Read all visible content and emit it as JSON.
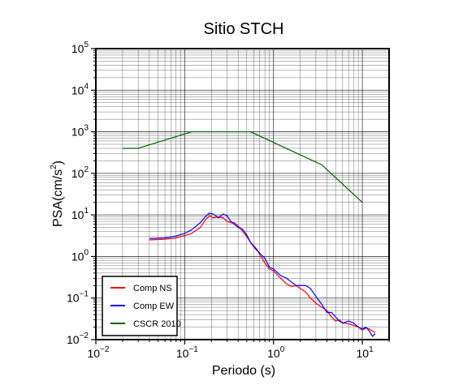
{
  "chart_data": {
    "type": "line",
    "title": "Sitio STCH",
    "xlabel": "Periodo (s)",
    "ylabel_main": "PSA(cm/s",
    "ylabel_sup": "2",
    "ylabel_close": ")",
    "x_scale": "log",
    "y_scale": "log",
    "xlim": [
      0.01,
      20
    ],
    "ylim": [
      0.01,
      100000
    ],
    "grid": true,
    "legend_position": "bottom-left",
    "x_ticks": [
      {
        "value": 0.01,
        "base": "10",
        "exp": "−2"
      },
      {
        "value": 0.1,
        "base": "10",
        "exp": "−1"
      },
      {
        "value": 1,
        "base": "10",
        "exp": "0"
      },
      {
        "value": 10,
        "base": "10",
        "exp": "1"
      }
    ],
    "y_ticks": [
      {
        "value": 0.01,
        "base": "10",
        "exp": "−2"
      },
      {
        "value": 0.1,
        "base": "10",
        "exp": "−1"
      },
      {
        "value": 1,
        "base": "10",
        "exp": "0"
      },
      {
        "value": 10,
        "base": "10",
        "exp": "1"
      },
      {
        "value": 100,
        "base": "10",
        "exp": "2"
      },
      {
        "value": 1000,
        "base": "10",
        "exp": "3"
      },
      {
        "value": 10000,
        "base": "10",
        "exp": "4"
      },
      {
        "value": 100000,
        "base": "10",
        "exp": "5"
      }
    ],
    "series": [
      {
        "name": "Comp NS",
        "color": "#ff0000",
        "points": [
          [
            0.04,
            2.5
          ],
          [
            0.06,
            2.6
          ],
          [
            0.08,
            2.8
          ],
          [
            0.1,
            3.2
          ],
          [
            0.12,
            3.6
          ],
          [
            0.15,
            5.0
          ],
          [
            0.17,
            7.5
          ],
          [
            0.19,
            9.5
          ],
          [
            0.21,
            8.5
          ],
          [
            0.24,
            9.0
          ],
          [
            0.27,
            8.5
          ],
          [
            0.3,
            7.0
          ],
          [
            0.33,
            6.5
          ],
          [
            0.36,
            6.5
          ],
          [
            0.4,
            5.5
          ],
          [
            0.45,
            4.0
          ],
          [
            0.5,
            3.0
          ],
          [
            0.55,
            2.2
          ],
          [
            0.6,
            1.8
          ],
          [
            0.65,
            1.5
          ],
          [
            0.7,
            1.1
          ],
          [
            0.8,
            0.7
          ],
          [
            0.9,
            0.5
          ],
          [
            1.0,
            0.45
          ],
          [
            1.2,
            0.3
          ],
          [
            1.4,
            0.22
          ],
          [
            1.6,
            0.19
          ],
          [
            1.8,
            0.2
          ],
          [
            2.0,
            0.17
          ],
          [
            2.3,
            0.14
          ],
          [
            2.6,
            0.1
          ],
          [
            3.0,
            0.075
          ],
          [
            3.5,
            0.06
          ],
          [
            4.0,
            0.05
          ],
          [
            4.5,
            0.035
          ],
          [
            5.0,
            0.028
          ],
          [
            5.5,
            0.03
          ],
          [
            6.0,
            0.025
          ],
          [
            7.0,
            0.024
          ],
          [
            8.0,
            0.022
          ],
          [
            9.0,
            0.02
          ],
          [
            10.0,
            0.017
          ],
          [
            11.0,
            0.019
          ],
          [
            12.0,
            0.018
          ],
          [
            13.0,
            0.016
          ],
          [
            14.0,
            0.015
          ]
        ]
      },
      {
        "name": "Comp EW",
        "color": "#0000ff",
        "points": [
          [
            0.04,
            2.7
          ],
          [
            0.06,
            2.8
          ],
          [
            0.08,
            3.1
          ],
          [
            0.1,
            3.6
          ],
          [
            0.12,
            4.4
          ],
          [
            0.15,
            6.5
          ],
          [
            0.17,
            9.0
          ],
          [
            0.19,
            11.0
          ],
          [
            0.21,
            10.5
          ],
          [
            0.24,
            8.5
          ],
          [
            0.27,
            10.5
          ],
          [
            0.3,
            9.5
          ],
          [
            0.33,
            7.0
          ],
          [
            0.36,
            6.0
          ],
          [
            0.4,
            5.0
          ],
          [
            0.45,
            4.5
          ],
          [
            0.5,
            3.3
          ],
          [
            0.55,
            2.2
          ],
          [
            0.6,
            1.7
          ],
          [
            0.65,
            1.4
          ],
          [
            0.7,
            1.2
          ],
          [
            0.8,
            0.9
          ],
          [
            0.9,
            0.55
          ],
          [
            1.0,
            0.5
          ],
          [
            1.2,
            0.35
          ],
          [
            1.4,
            0.3
          ],
          [
            1.6,
            0.24
          ],
          [
            1.8,
            0.2
          ],
          [
            2.0,
            0.2
          ],
          [
            2.3,
            0.2
          ],
          [
            2.6,
            0.17
          ],
          [
            3.0,
            0.11
          ],
          [
            3.5,
            0.07
          ],
          [
            4.0,
            0.045
          ],
          [
            4.5,
            0.045
          ],
          [
            5.0,
            0.035
          ],
          [
            5.5,
            0.028
          ],
          [
            6.0,
            0.025
          ],
          [
            7.0,
            0.028
          ],
          [
            8.0,
            0.025
          ],
          [
            9.0,
            0.02
          ],
          [
            10.0,
            0.018
          ],
          [
            11.0,
            0.02
          ],
          [
            12.0,
            0.016
          ],
          [
            13.0,
            0.012
          ],
          [
            14.0,
            0.014
          ]
        ]
      },
      {
        "name": "CSCR 2010",
        "color": "#006400",
        "points": [
          [
            0.02,
            400
          ],
          [
            0.03,
            400
          ],
          [
            0.12,
            1000
          ],
          [
            0.55,
            1000
          ],
          [
            3.5,
            160
          ],
          [
            10.0,
            20
          ]
        ]
      }
    ]
  }
}
